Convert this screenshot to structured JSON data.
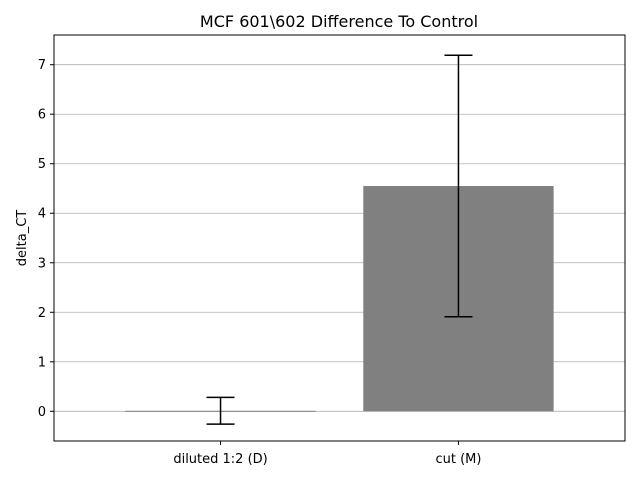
{
  "chart_data": {
    "type": "bar",
    "title": "MCF 601\\602 Difference To Control",
    "xlabel": "",
    "ylabel": "delta_CT",
    "categories": [
      "diluted 1:2 (D)",
      "cut (M)"
    ],
    "values": [
      0.01,
      4.55
    ],
    "error": [
      0.27,
      2.64
    ],
    "ylim": [
      -0.6,
      7.6
    ],
    "yticks": [
      0,
      1,
      2,
      3,
      4,
      5,
      6,
      7
    ],
    "grid": "y",
    "bar_color": "#808080",
    "error_color": "#000000",
    "grid_color": "#b0b0b0"
  }
}
